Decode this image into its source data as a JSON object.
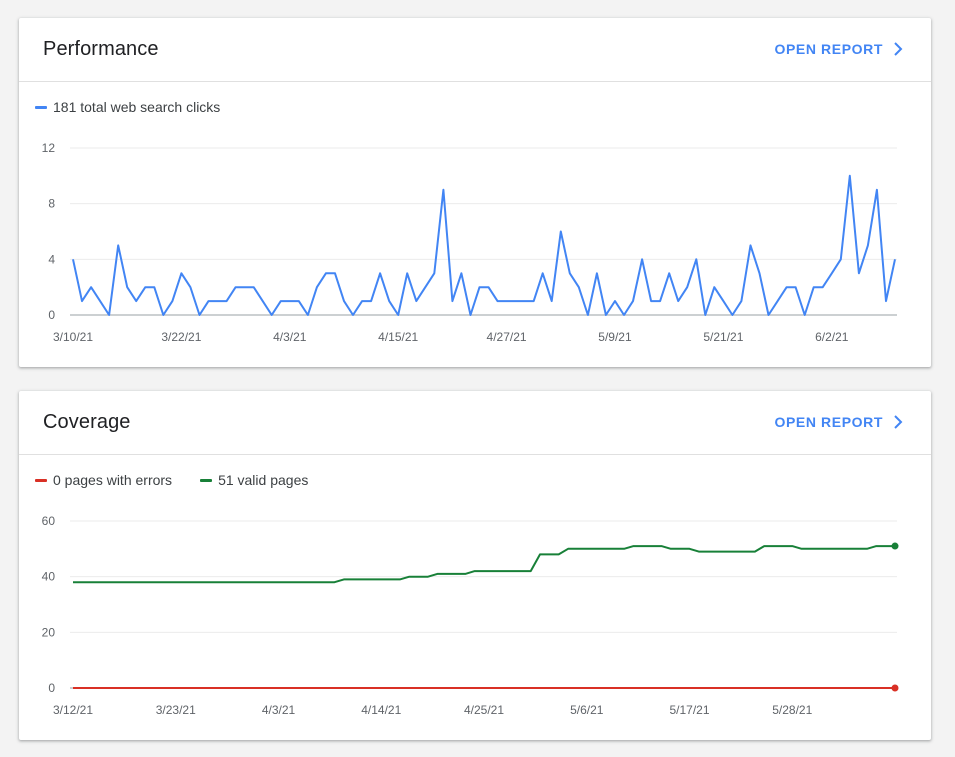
{
  "colors": {
    "accent": "#4285f4",
    "performance_line": "#4285f4",
    "errors_line": "#d93025",
    "valid_line": "#188038",
    "grid": "#ebebeb"
  },
  "performance": {
    "title": "Performance",
    "open_report_label": "OPEN REPORT",
    "legend": [
      {
        "label": "181 total web search clicks",
        "color": "#4285f4"
      }
    ]
  },
  "coverage": {
    "title": "Coverage",
    "open_report_label": "OPEN REPORT",
    "legend": [
      {
        "label": "0 pages with errors",
        "color": "#d93025"
      },
      {
        "label": "51 valid pages",
        "color": "#188038"
      }
    ]
  },
  "chart_data": [
    {
      "type": "line",
      "title": "",
      "xlabel": "",
      "ylabel": "",
      "ylim": [
        0,
        12
      ],
      "yticks": [
        0,
        4,
        8,
        12
      ],
      "grid": true,
      "legend_position": "top-left",
      "x_tick_labels": [
        "3/10/21",
        "3/22/21",
        "4/3/21",
        "4/15/21",
        "4/27/21",
        "5/9/21",
        "5/21/21",
        "6/2/21"
      ],
      "x_tick_indices": [
        0,
        12,
        24,
        36,
        48,
        60,
        72,
        84
      ],
      "series": [
        {
          "name": "181 total web search clicks",
          "color": "#4285f4",
          "values": [
            4,
            1,
            2,
            1,
            0,
            5,
            2,
            1,
            2,
            2,
            0,
            1,
            3,
            2,
            0,
            1,
            1,
            1,
            2,
            2,
            2,
            1,
            0,
            1,
            1,
            1,
            0,
            2,
            3,
            3,
            1,
            0,
            1,
            1,
            3,
            1,
            0,
            3,
            1,
            2,
            3,
            9,
            1,
            3,
            0,
            2,
            2,
            1,
            1,
            1,
            1,
            1,
            3,
            1,
            6,
            3,
            2,
            0,
            3,
            0,
            1,
            0,
            1,
            4,
            1,
            1,
            3,
            1,
            2,
            4,
            0,
            2,
            1,
            0,
            1,
            5,
            3,
            0,
            1,
            2,
            2,
            0,
            2,
            2,
            3,
            4,
            10,
            3,
            5,
            9,
            1,
            4
          ]
        }
      ]
    },
    {
      "type": "line",
      "title": "",
      "xlabel": "",
      "ylabel": "",
      "ylim": [
        0,
        60
      ],
      "yticks": [
        0,
        20,
        40,
        60
      ],
      "grid": true,
      "legend_position": "top-left",
      "x_tick_labels": [
        "3/12/21",
        "3/23/21",
        "4/3/21",
        "4/14/21",
        "4/25/21",
        "5/6/21",
        "5/17/21",
        "5/28/21"
      ],
      "x_tick_indices": [
        0,
        11,
        22,
        33,
        44,
        55,
        66,
        77
      ],
      "series": [
        {
          "name": "0 pages with errors",
          "color": "#d93025",
          "values": [
            0,
            0,
            0,
            0,
            0,
            0,
            0,
            0,
            0,
            0,
            0,
            0,
            0,
            0,
            0,
            0,
            0,
            0,
            0,
            0,
            0,
            0,
            0,
            0,
            0,
            0,
            0,
            0,
            0,
            0,
            0,
            0,
            0,
            0,
            0,
            0,
            0,
            0,
            0,
            0,
            0,
            0,
            0,
            0,
            0,
            0,
            0,
            0,
            0,
            0,
            0,
            0,
            0,
            0,
            0,
            0,
            0,
            0,
            0,
            0,
            0,
            0,
            0,
            0,
            0,
            0,
            0,
            0,
            0,
            0,
            0,
            0,
            0,
            0,
            0,
            0,
            0,
            0,
            0,
            0,
            0,
            0,
            0,
            0,
            0,
            0,
            0,
            0,
            0
          ]
        },
        {
          "name": "51 valid pages",
          "color": "#188038",
          "values": [
            38,
            38,
            38,
            38,
            38,
            38,
            38,
            38,
            38,
            38,
            38,
            38,
            38,
            38,
            38,
            38,
            38,
            38,
            38,
            38,
            38,
            38,
            38,
            38,
            38,
            38,
            38,
            38,
            38,
            39,
            39,
            39,
            39,
            39,
            39,
            39,
            40,
            40,
            40,
            41,
            41,
            41,
            41,
            42,
            42,
            42,
            42,
            42,
            42,
            42,
            48,
            48,
            48,
            50,
            50,
            50,
            50,
            50,
            50,
            50,
            51,
            51,
            51,
            51,
            50,
            50,
            50,
            49,
            49,
            49,
            49,
            49,
            49,
            49,
            51,
            51,
            51,
            51,
            50,
            50,
            50,
            50,
            50,
            50,
            50,
            50,
            51,
            51,
            51
          ]
        }
      ]
    }
  ]
}
